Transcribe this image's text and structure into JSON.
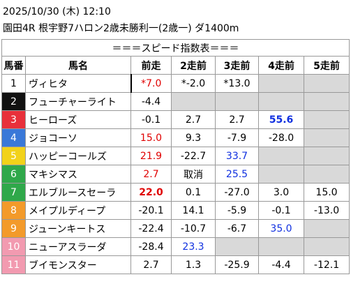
{
  "header": {
    "datetime": "2025/10/30 (木) 12:10",
    "race": "園田4R 根宇野7ハロン2歳未勝利一(2歳一) ダ1400m"
  },
  "table": {
    "title": "＝＝＝スピード指数表＝＝＝",
    "columns": [
      "馬番",
      "馬名",
      "前走",
      "2走前",
      "3走前",
      "4走前",
      "5走前"
    ],
    "rows": [
      {
        "no": "1",
        "waku_color": "#ffffff",
        "no_color": "#000000",
        "name": "ヴィヒタ",
        "cells": [
          {
            "text": "*7.0",
            "color": "#e00000"
          },
          {
            "text": "*-2.0"
          },
          {
            "text": "*13.0"
          },
          null,
          null
        ]
      },
      {
        "no": "2",
        "waku_color": "#111111",
        "no_color": "#ffffff",
        "name": "フューチャーライト",
        "cells": [
          {
            "text": "-4.4"
          },
          null,
          null,
          null,
          null
        ]
      },
      {
        "no": "3",
        "waku_color": "#e8303a",
        "no_color": "#ffffff",
        "name": "ヒーローズ",
        "cells": [
          {
            "text": "-0.1"
          },
          {
            "text": "2.7"
          },
          {
            "text": "2.7"
          },
          {
            "text": "55.6",
            "color": "#1030e0",
            "bold": true
          },
          null
        ]
      },
      {
        "no": "4",
        "waku_color": "#3a78d8",
        "no_color": "#ffffff",
        "name": "ジョコーソ",
        "cells": [
          {
            "text": "15.0",
            "color": "#e00000"
          },
          {
            "text": "9.3"
          },
          {
            "text": "-7.9"
          },
          {
            "text": "-28.0"
          },
          null
        ]
      },
      {
        "no": "5",
        "waku_color": "#f2d21a",
        "no_color": "#ffffff",
        "name": "ハッピーコールズ",
        "cells": [
          {
            "text": "21.9",
            "color": "#e00000"
          },
          {
            "text": "-22.7"
          },
          {
            "text": "33.7",
            "color": "#1030e0"
          },
          null,
          null
        ]
      },
      {
        "no": "6",
        "waku_color": "#2fa84a",
        "no_color": "#ffffff",
        "name": "マキシマス",
        "cells": [
          {
            "text": "2.7",
            "color": "#e00000"
          },
          {
            "text": "取消"
          },
          {
            "text": "25.5",
            "color": "#1030e0"
          },
          null,
          null
        ]
      },
      {
        "no": "7",
        "waku_color": "#2fa84a",
        "no_color": "#ffffff",
        "name": "エルブルースセーラ",
        "cells": [
          {
            "text": "22.0",
            "color": "#e00000",
            "bold": true
          },
          {
            "text": "0.1"
          },
          {
            "text": "-27.0"
          },
          {
            "text": "3.0"
          },
          {
            "text": "15.0"
          }
        ]
      },
      {
        "no": "8",
        "waku_color": "#f39a2a",
        "no_color": "#ffffff",
        "name": "メイプルディープ",
        "cells": [
          {
            "text": "-20.1"
          },
          {
            "text": "14.1"
          },
          {
            "text": "-5.9"
          },
          {
            "text": "-0.1"
          },
          {
            "text": "-13.0"
          }
        ]
      },
      {
        "no": "9",
        "waku_color": "#f39a2a",
        "no_color": "#ffffff",
        "name": "ジューンキートス",
        "cells": [
          {
            "text": "-22.4"
          },
          {
            "text": "-10.7"
          },
          {
            "text": "-6.7"
          },
          {
            "text": "35.0",
            "color": "#1030e0"
          },
          null
        ]
      },
      {
        "no": "10",
        "waku_color": "#f29ab0",
        "no_color": "#ffffff",
        "name": "ニューアスラーダ",
        "cells": [
          {
            "text": "-28.4"
          },
          {
            "text": "23.3",
            "color": "#1030e0"
          },
          null,
          null,
          null
        ]
      },
      {
        "no": "11",
        "waku_color": "#f29ab0",
        "no_color": "#ffffff",
        "name": "ブイモンスター",
        "cells": [
          {
            "text": "2.7"
          },
          {
            "text": "1.3"
          },
          {
            "text": "-25.9"
          },
          {
            "text": "-4.4"
          },
          {
            "text": "-12.1"
          }
        ]
      }
    ]
  }
}
